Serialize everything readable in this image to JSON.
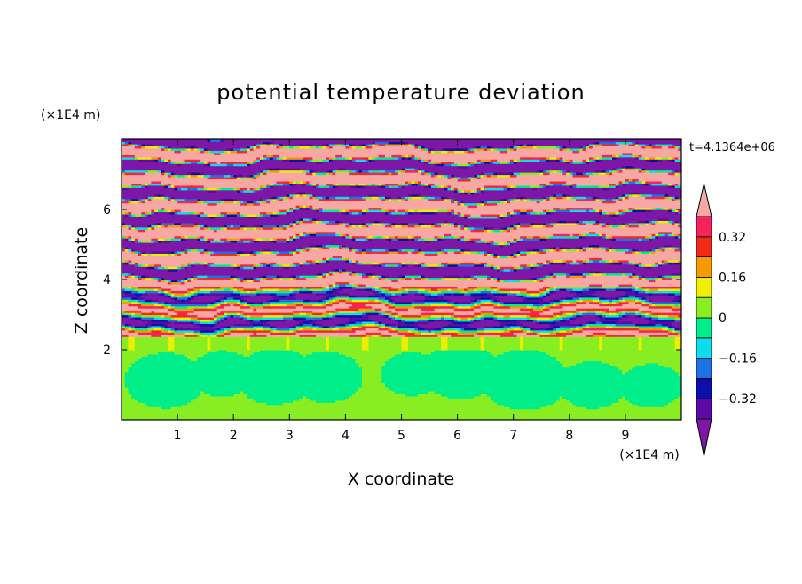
{
  "chart_data": {
    "type": "heatmap",
    "title": "potential temperature deviation",
    "xlabel": "X coordinate",
    "ylabel": "Z coordinate",
    "x_unit": "(×1E4 m)",
    "z_unit": "(×1E4 m)",
    "time_label": "t=4.1364e+06",
    "x_ticks": [
      "1",
      "2",
      "3",
      "4",
      "5",
      "6",
      "7",
      "8",
      "9"
    ],
    "z_ticks": [
      "2",
      "4",
      "6"
    ],
    "xlim": [
      0,
      10
    ],
    "zlim": [
      0,
      8
    ],
    "colorbar": {
      "levels": [
        -0.4,
        -0.32,
        -0.24,
        -0.16,
        -0.08,
        0,
        0.08,
        0.16,
        0.24,
        0.32,
        0.4
      ],
      "tick_labels": [
        "0.32",
        "0.16",
        "0",
        "−0.16",
        "−0.32"
      ],
      "tick_values": [
        0.32,
        0.16,
        0,
        -0.16,
        -0.32
      ],
      "extend": "both",
      "colors": {
        "below": "#7e16a8",
        "bins": [
          "#5c0aa6",
          "#0c10a8",
          "#1f6fe6",
          "#10dcf0",
          "#00ee8a",
          "#88ee22",
          "#eeee00",
          "#f59a00",
          "#f22a1a",
          "#f6225a"
        ],
        "above": "#f7a7a4"
      }
    },
    "structure": {
      "lower_layer": {
        "z_range": [
          0,
          2
        ],
        "dominant_values": [
          0.03,
          -0.03
        ]
      },
      "transition_layer": {
        "z_range": [
          2,
          2.35
        ],
        "value": 0.02
      },
      "upper_layer": {
        "z_range": [
          2.35,
          8
        ],
        "description_values": [
          0.45,
          -0.45
        ]
      }
    }
  }
}
